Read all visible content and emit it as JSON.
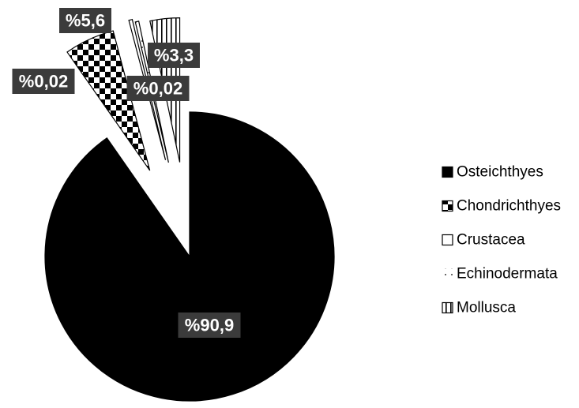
{
  "chart_data": {
    "type": "pie",
    "exploded": true,
    "categories": [
      "Osteichthyes",
      "Chondrichthyes",
      "Crustacea",
      "Echinodermata",
      "Mollusca"
    ],
    "values": [
      90.9,
      5.6,
      0.02,
      0.02,
      3.3
    ],
    "data_labels": [
      "%90,9",
      "%5,6",
      "%0,02",
      "%0,02",
      "%3,3"
    ],
    "fills": [
      "solid-black",
      "checkerboard",
      "diagonal-white",
      "light-dotted",
      "vertical-lines"
    ],
    "colors": {
      "primary": "#000000",
      "background": "#ffffff",
      "label_box": "#3b3b3b",
      "label_text": "#ffffff"
    },
    "legend": {
      "position": "right",
      "entries": [
        "Osteichthyes",
        "Chondrichthyes",
        "Crustacea",
        "Echinodermata",
        "Mollusca"
      ]
    }
  }
}
